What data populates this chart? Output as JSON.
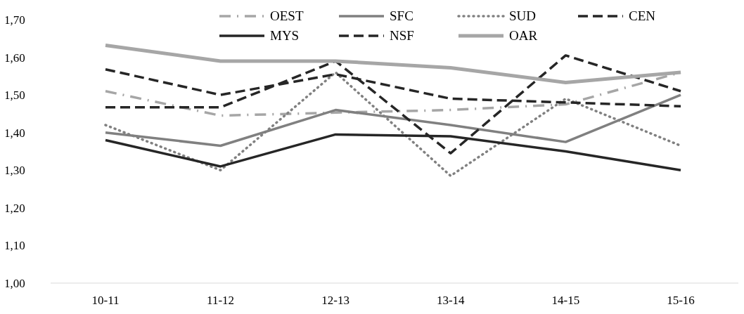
{
  "chart_data": {
    "type": "line",
    "categories": [
      "10-11",
      "11-12",
      "12-13",
      "13-14",
      "14-15",
      "15-16"
    ],
    "ylim": [
      1.0,
      1.7
    ],
    "yticks": [
      {
        "value": 1.0,
        "label": "1,00"
      },
      {
        "value": 1.1,
        "label": "1,10"
      },
      {
        "value": 1.2,
        "label": "1,20"
      },
      {
        "value": 1.3,
        "label": "1,30"
      },
      {
        "value": 1.4,
        "label": "1,40"
      },
      {
        "value": 1.5,
        "label": "1,50"
      },
      {
        "value": 1.6,
        "label": "1,60"
      },
      {
        "value": 1.7,
        "label": "1,70"
      }
    ],
    "grid": false,
    "legend": "top",
    "marker": "none",
    "series": [
      {
        "name": "OEST",
        "color": "#a6a6a6",
        "line_style": "dashed",
        "values": [
          1.51,
          1.445,
          1.453,
          1.46,
          1.475,
          1.56
        ]
      },
      {
        "name": "SFC",
        "color": "#808080",
        "line_style": "solid",
        "values": [
          1.4,
          1.365,
          1.46,
          1.42,
          1.375,
          1.5
        ]
      },
      {
        "name": "SUD",
        "color": "#808080",
        "line_style": "dotted",
        "values": [
          1.42,
          1.3,
          1.56,
          1.285,
          1.49,
          1.365
        ]
      },
      {
        "name": "CEN",
        "color": "#262626",
        "line_style": "dashed",
        "values": [
          1.568,
          1.5,
          1.555,
          1.49,
          1.48,
          1.47
        ]
      },
      {
        "name": "MYS",
        "color": "#262626",
        "line_style": "solid",
        "values": [
          1.38,
          1.31,
          1.395,
          1.39,
          1.35,
          1.3
        ]
      },
      {
        "name": "NSF",
        "color": "#262626",
        "line_style": "dashed",
        "values": [
          1.467,
          1.467,
          1.59,
          1.345,
          1.605,
          1.51
        ]
      },
      {
        "name": "OAR",
        "color": "#a6a6a6",
        "line_style": "solid",
        "values": [
          1.632,
          1.59,
          1.59,
          1.572,
          1.533,
          1.56
        ]
      }
    ]
  }
}
